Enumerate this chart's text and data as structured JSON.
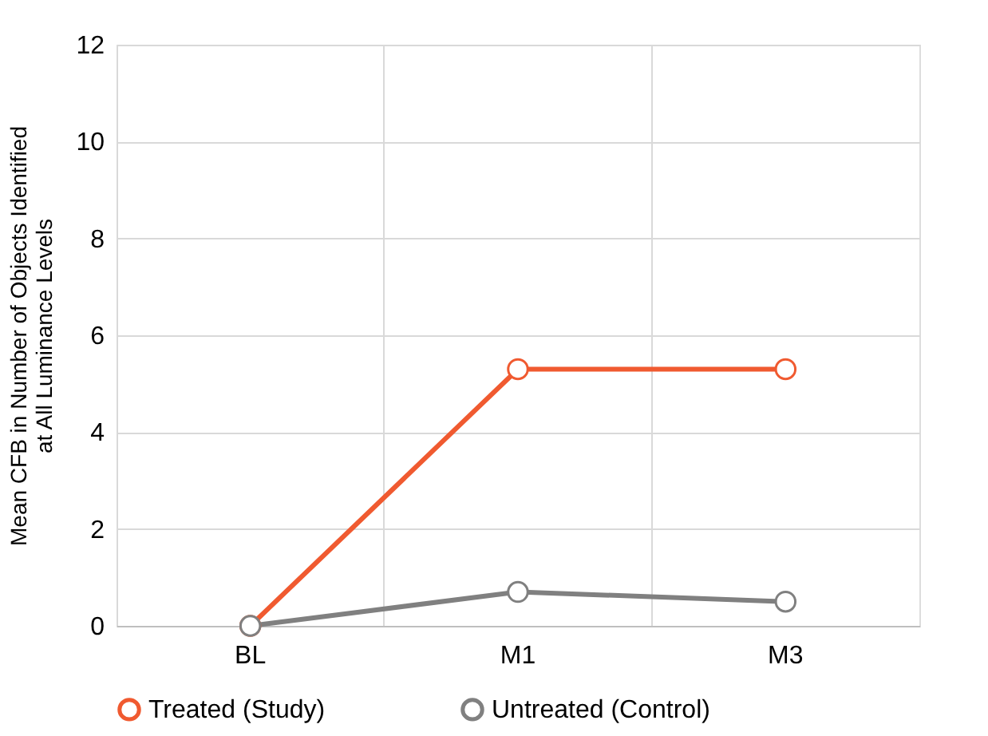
{
  "chart_data": {
    "type": "line",
    "ylabel": "Mean CFB in Number of Objects Identified at All Luminance Levels",
    "categories": [
      "BL",
      "M1",
      "M3"
    ],
    "series": [
      {
        "name": "Treated (Study)",
        "color": "#f05a30",
        "values": [
          0,
          5.3,
          5.3
        ]
      },
      {
        "name": "Untreated (Control)",
        "color": "#808080",
        "values": [
          0,
          0.7,
          0.5
        ]
      }
    ],
    "ylim": [
      0,
      12
    ],
    "yticks": [
      0,
      2,
      4,
      6,
      8,
      10,
      12
    ],
    "grid": true,
    "legend": "bottom",
    "marker": "circle",
    "line_style": "solid"
  }
}
